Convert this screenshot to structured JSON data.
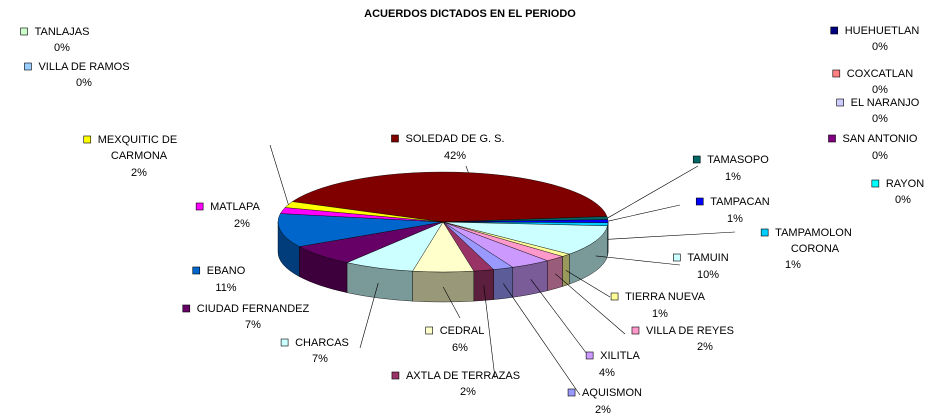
{
  "chart_data": {
    "type": "pie",
    "title": "ACUERDOS DICTADOS EN EL PERIODO",
    "categories": [
      "SOLEDAD DE G. S.",
      "TAMASOPO",
      "TAMPACAN",
      "TAMPAMOLON CORONA",
      "TAMUIN",
      "TIERRA NUEVA",
      "VILLA DE REYES",
      "XILITLA",
      "AQUISMON",
      "AXTLA DE TERRAZAS",
      "CEDRAL",
      "CHARCAS",
      "CIUDAD FERNANDEZ",
      "EBANO",
      "MATLAPA",
      "MEXQUITIC DE CARMONA",
      "TANLAJAS",
      "VILLA DE RAMOS",
      "HUEHUETLAN",
      "COXCATLAN",
      "EL NARANJO",
      "SAN ANTONIO",
      "RAYON"
    ],
    "values": [
      42,
      1,
      1,
      1,
      10,
      1,
      2,
      4,
      2,
      2,
      6,
      7,
      7,
      11,
      2,
      2,
      0,
      0,
      0,
      0,
      0,
      0,
      0
    ],
    "value_labels": [
      "42%",
      "1%",
      "1%",
      "1%",
      "10%",
      "1%",
      "2%",
      "4%",
      "2%",
      "2%",
      "6%",
      "7%",
      "7%",
      "11%",
      "2%",
      "2%",
      "0%",
      "0%",
      "0%",
      "0%",
      "0%",
      "0%",
      "0%"
    ],
    "colors": [
      "#800000",
      "#006666",
      "#0000ff",
      "#00ccff",
      "#ccffff",
      "#ffff99",
      "#ff99cc",
      "#cc99ff",
      "#9999ff",
      "#993366",
      "#ffffcc",
      "#ccffff",
      "#660066",
      "#0066cc",
      "#ff00ff",
      "#ffff00",
      "#ccffcc",
      "#99ccff",
      "#000080",
      "#ff8080",
      "#ccccff",
      "#800080",
      "#00ffff"
    ]
  }
}
